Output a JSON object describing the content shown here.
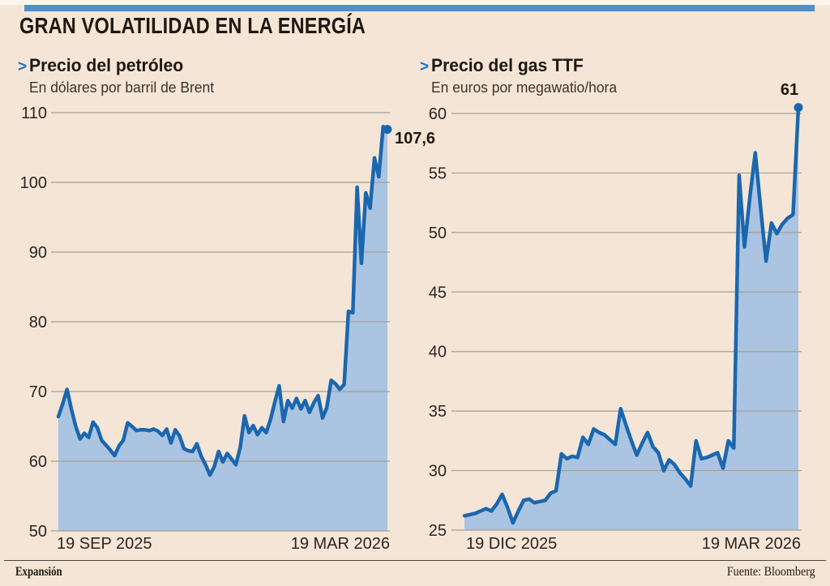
{
  "page": {
    "title": "GRAN VOLATILIDAD EN LA ENERGÍA",
    "marker": ">",
    "accent_color": "#4f90c6",
    "background_color": "#f4e5d6",
    "footer": {
      "brand": "Expansión",
      "source": "Fuente: Bloomberg"
    }
  },
  "chart_data": [
    {
      "type": "area",
      "title": "Precio del petróleo",
      "subtitle": "En dólares por barril de Brent",
      "ylim": [
        50,
        110
      ],
      "yticks": [
        110,
        100,
        90,
        80,
        70,
        60,
        50
      ],
      "xticks": [
        "19 SEP 2025",
        "19 MAR 2026"
      ],
      "end_label": "107,6",
      "last_value": 107.6,
      "line_color": "#1b67af",
      "fill_color": "#aac4e1",
      "grid_color": "#a89f93",
      "values": [
        66.4,
        68.2,
        70.3,
        67.5,
        65.0,
        63.2,
        64.0,
        63.4,
        65.6,
        64.8,
        63.0,
        62.3,
        61.6,
        60.8,
        62.2,
        63.0,
        65.5,
        65.0,
        64.4,
        64.5,
        64.5,
        64.4,
        64.6,
        64.3,
        63.7,
        64.6,
        62.6,
        64.5,
        63.6,
        61.8,
        61.5,
        61.4,
        62.5,
        60.7,
        59.5,
        58.0,
        59.2,
        61.4,
        59.9,
        61.1,
        60.3,
        59.5,
        62.0,
        66.5,
        64.1,
        65.1,
        63.8,
        64.8,
        64.1,
        66.0,
        68.5,
        70.8,
        65.7,
        68.7,
        67.6,
        69.0,
        67.5,
        68.7,
        67.0,
        68.4,
        69.4,
        66.2,
        67.7,
        71.6,
        71.1,
        70.3,
        71.0,
        81.5,
        81.3,
        99.3,
        88.4,
        98.5,
        96.3,
        103.5,
        100.8,
        108.0,
        107.6
      ]
    },
    {
      "type": "area",
      "title": "Precio del gas TTF",
      "subtitle": "En euros por megawatio/hora",
      "ylim": [
        25,
        60
      ],
      "yticks": [
        60,
        55,
        50,
        45,
        40,
        35,
        30,
        25
      ],
      "xticks": [
        "19 DIC 2025",
        "19 MAR 2026"
      ],
      "end_label": "61",
      "last_value": 61,
      "line_color": "#1b67af",
      "fill_color": "#aac4e1",
      "grid_color": "#a89f93",
      "values": [
        26.2,
        26.3,
        26.4,
        26.6,
        26.8,
        26.6,
        27.2,
        28.0,
        26.9,
        25.6,
        26.6,
        27.5,
        27.6,
        27.3,
        27.4,
        27.5,
        28.1,
        28.3,
        31.4,
        31.0,
        31.2,
        31.1,
        32.8,
        32.2,
        33.5,
        33.2,
        33.0,
        32.6,
        32.2,
        35.2,
        33.8,
        32.5,
        31.3,
        32.3,
        33.2,
        32.0,
        31.5,
        30.0,
        30.9,
        30.5,
        29.8,
        29.3,
        28.7,
        32.5,
        31.0,
        31.1,
        31.3,
        31.5,
        30.2,
        32.5,
        31.9,
        54.8,
        48.8,
        53.0,
        56.7,
        52.0,
        47.6,
        50.8,
        49.9,
        50.7,
        51.2,
        51.5,
        60.5
      ]
    }
  ]
}
